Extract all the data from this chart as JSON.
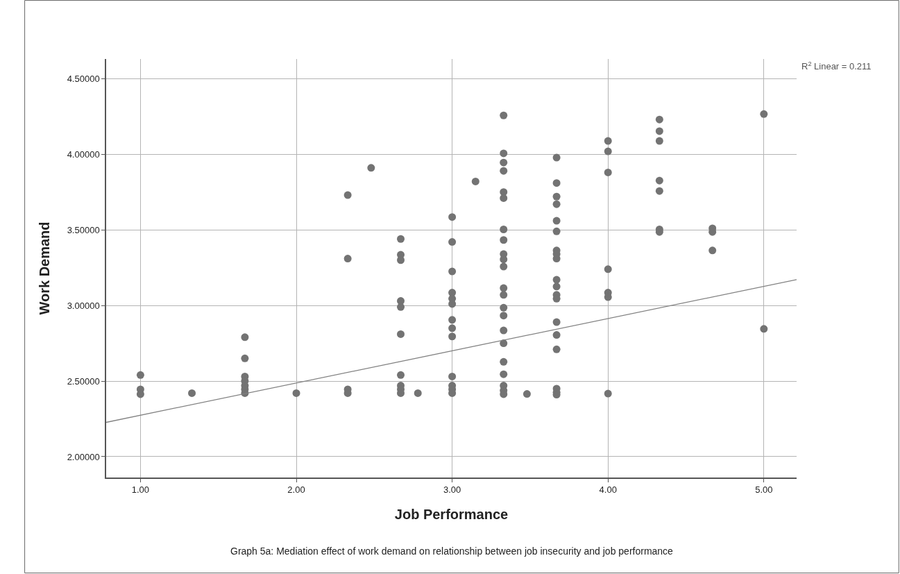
{
  "chart_data": {
    "type": "scatter",
    "xlabel": "Job Performance",
    "ylabel": "Work Demand",
    "xlim": [
      0.78,
      5.21
    ],
    "ylim": [
      1.862,
      4.63
    ],
    "xticks": [
      {
        "value": 1,
        "label": "1.00"
      },
      {
        "value": 2,
        "label": "2.00"
      },
      {
        "value": 3,
        "label": "3.00"
      },
      {
        "value": 4,
        "label": "4.00"
      },
      {
        "value": 5,
        "label": "5.00"
      }
    ],
    "yticks": [
      {
        "value": 2,
        "label": "2.00000"
      },
      {
        "value": 2.5,
        "label": "2.50000"
      },
      {
        "value": 3,
        "label": "3.00000"
      },
      {
        "value": 3.5,
        "label": "3.50000"
      },
      {
        "value": 4,
        "label": "4.00000"
      },
      {
        "value": 4.5,
        "label": "4.50000"
      }
    ],
    "grid": true,
    "marker": "circle",
    "annotations": [
      "R$^{2}$ Linear = 0.211",
      "Graph 5a: Mediation effect of work demand on relationship between job insecurity and job performance"
    ],
    "series": [
      {
        "color": "#737373",
        "x": [
          1,
          1,
          1,
          1.33,
          1.67,
          1.67,
          1.67,
          1.67,
          1.67,
          1.67,
          1.67,
          2,
          2.33,
          2.33,
          2.33,
          2.33,
          2.48,
          2.67,
          2.67,
          2.67,
          2.67,
          2.67,
          2.67,
          2.67,
          2.67,
          2.67,
          2.67,
          2.78,
          3,
          3,
          3,
          3,
          3,
          3,
          3,
          3,
          3,
          3,
          3,
          3,
          3,
          3.15,
          3.33,
          3.33,
          3.33,
          3.33,
          3.33,
          3.33,
          3.33,
          3.33,
          3.33,
          3.33,
          3.33,
          3.33,
          3.33,
          3.33,
          3.33,
          3.33,
          3.33,
          3.33,
          3.33,
          3.33,
          3.33,
          3.33,
          3.48,
          3.67,
          3.67,
          3.67,
          3.67,
          3.67,
          3.67,
          3.67,
          3.67,
          3.67,
          3.67,
          3.67,
          3.67,
          3.67,
          3.67,
          3.67,
          3.67,
          3.67,
          3.67,
          3.67,
          4,
          4,
          4,
          4,
          4,
          4,
          4,
          4.33,
          4.33,
          4.33,
          4.33,
          4.33,
          4.33,
          4.33,
          4.67,
          4.67,
          4.67,
          5,
          5
        ],
        "values": [
          2.54,
          2.445,
          2.413,
          2.42,
          2.79,
          2.65,
          2.53,
          2.5,
          2.47,
          2.445,
          2.42,
          2.42,
          3.73,
          3.31,
          2.445,
          2.42,
          3.91,
          3.44,
          3.335,
          3.3,
          3.03,
          2.99,
          2.81,
          2.54,
          2.47,
          2.445,
          2.42,
          2.42,
          3.585,
          3.42,
          3.225,
          3.085,
          3.045,
          3.01,
          2.905,
          2.85,
          2.795,
          2.53,
          2.47,
          2.445,
          2.42,
          3.82,
          4.257,
          4.006,
          3.945,
          3.89,
          3.75,
          3.71,
          3.503,
          3.433,
          3.34,
          3.305,
          3.257,
          3.115,
          3.07,
          2.985,
          2.933,
          2.835,
          2.75,
          2.627,
          2.545,
          2.47,
          2.438,
          2.413,
          2.415,
          3.978,
          3.81,
          3.72,
          3.67,
          3.56,
          3.49,
          3.364,
          3.34,
          3.31,
          3.17,
          3.125,
          3.07,
          3.045,
          2.89,
          2.805,
          2.71,
          2.45,
          2.425,
          2.41,
          4.088,
          4.019,
          3.88,
          3.24,
          3.085,
          3.055,
          2.417,
          4.23,
          4.153,
          4.088,
          3.826,
          3.757,
          3.503,
          3.486,
          3.51,
          3.486,
          3.364,
          4.266,
          2.845
        ]
      },
      {
        "type": "line",
        "marker": "none",
        "color": "#808080",
        "x": [
          0.78,
          5.21
        ],
        "values": [
          2.227,
          3.171
        ]
      }
    ]
  }
}
